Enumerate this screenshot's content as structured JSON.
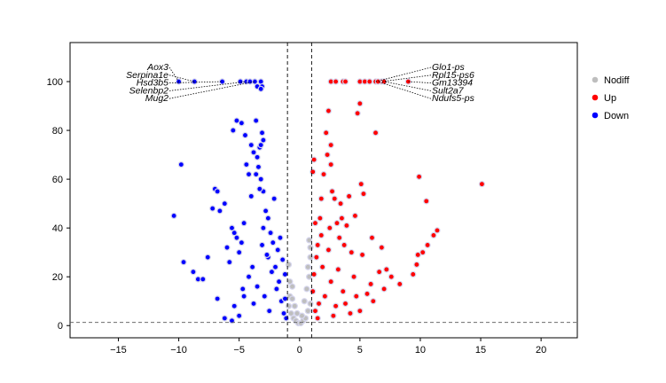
{
  "chart_data": {
    "type": "scatter",
    "title": "",
    "xlabel": "",
    "ylabel": "",
    "xlim": [
      -19,
      23
    ],
    "ylim": [
      -5,
      116
    ],
    "xticks": [
      -15,
      -10,
      -5,
      0,
      5,
      10,
      15,
      20
    ],
    "yticks": [
      0,
      20,
      40,
      60,
      80,
      100
    ],
    "thresholds": {
      "x": [
        -1,
        1
      ],
      "y": 1.3
    },
    "legend": {
      "position": "right",
      "entries": [
        {
          "name": "Nodiff",
          "color": "#bebebe"
        },
        {
          "name": "Up",
          "color": "#ff0000"
        },
        {
          "name": "Down",
          "color": "#0000ff"
        }
      ]
    },
    "labeled_genes": {
      "left": [
        {
          "name": "Aox3",
          "x": -10.0,
          "y": 100
        },
        {
          "name": "Serpina1e",
          "x": -8.7,
          "y": 100
        },
        {
          "name": "Hsd3b5",
          "x": -6.4,
          "y": 100
        },
        {
          "name": "Selenbp2",
          "x": -4.4,
          "y": 100
        },
        {
          "name": "Mug2",
          "x": -3.7,
          "y": 100
        }
      ],
      "right": [
        {
          "name": "Glo1-ps",
          "x": 6.3,
          "y": 100
        },
        {
          "name": "Rpl15-ps6",
          "x": 6.8,
          "y": 100
        },
        {
          "name": "Gm13394",
          "x": 9.0,
          "y": 100
        },
        {
          "name": "Sult2a7",
          "x": 7.0,
          "y": 100
        },
        {
          "name": "Ndufs5-ps",
          "x": 6.5,
          "y": 100
        }
      ]
    },
    "series": [
      {
        "name": "Down",
        "color": "#0000ff",
        "points": [
          [
            -10.0,
            100
          ],
          [
            -8.7,
            100
          ],
          [
            -6.4,
            100
          ],
          [
            -4.4,
            100
          ],
          [
            -3.7,
            100
          ],
          [
            -4.9,
            100
          ],
          [
            -4.1,
            100
          ],
          [
            -3.2,
            100
          ],
          [
            -3.1,
            98
          ],
          [
            -3.5,
            98
          ],
          [
            -3.2,
            97
          ],
          [
            -9.8,
            66
          ],
          [
            -10.4,
            45
          ],
          [
            -9.6,
            26
          ],
          [
            -8.8,
            22
          ],
          [
            -8.4,
            19
          ],
          [
            -8.0,
            19
          ],
          [
            -7.6,
            28
          ],
          [
            -7.2,
            48
          ],
          [
            -7.0,
            56
          ],
          [
            -6.8,
            55
          ],
          [
            -6.6,
            47
          ],
          [
            -6.2,
            50
          ],
          [
            -6.0,
            32
          ],
          [
            -5.8,
            26
          ],
          [
            -5.6,
            40
          ],
          [
            -5.4,
            38
          ],
          [
            -5.2,
            36
          ],
          [
            -5.5,
            80
          ],
          [
            -5.2,
            84
          ],
          [
            -4.8,
            83
          ],
          [
            -4.5,
            78
          ],
          [
            -4.0,
            74
          ],
          [
            -3.8,
            71
          ],
          [
            -3.5,
            69
          ],
          [
            -3.3,
            73
          ],
          [
            -3.2,
            74
          ],
          [
            -3.6,
            84
          ],
          [
            -3.1,
            79
          ],
          [
            -3.0,
            76
          ],
          [
            -3.4,
            65
          ],
          [
            -3.2,
            60
          ],
          [
            -3.0,
            55
          ],
          [
            -2.8,
            47
          ],
          [
            -2.6,
            44
          ],
          [
            -3.6,
            62
          ],
          [
            -3.3,
            56
          ],
          [
            -4.4,
            66
          ],
          [
            -4.2,
            62
          ],
          [
            -4.0,
            53
          ],
          [
            -4.6,
            42
          ],
          [
            -4.8,
            34
          ],
          [
            -5.0,
            30
          ],
          [
            -6.8,
            11
          ],
          [
            -5.4,
            8
          ],
          [
            -5.0,
            4
          ],
          [
            -5.6,
            2
          ],
          [
            -6.2,
            3
          ],
          [
            -4.6,
            12
          ],
          [
            -3.0,
            40
          ],
          [
            -2.4,
            38
          ],
          [
            -2.2,
            34
          ],
          [
            -1.8,
            31
          ],
          [
            -1.6,
            36
          ],
          [
            -1.4,
            27
          ],
          [
            -1.2,
            21
          ],
          [
            -2.0,
            24
          ],
          [
            -2.6,
            28
          ],
          [
            -1.9,
            15
          ],
          [
            -1.5,
            10
          ],
          [
            -1.3,
            5
          ],
          [
            -1.1,
            3
          ],
          [
            -2.5,
            6
          ],
          [
            -3.5,
            16
          ],
          [
            -3.9,
            24
          ],
          [
            -4.2,
            20
          ],
          [
            -2.1,
            52
          ],
          [
            -2.7,
            29
          ],
          [
            -4.7,
            15
          ],
          [
            -3.8,
            9
          ],
          [
            -2.9,
            12
          ],
          [
            -1.7,
            18
          ],
          [
            -1.2,
            11
          ],
          [
            -2.3,
            22
          ],
          [
            -3.1,
            33
          ]
        ]
      },
      {
        "name": "Up",
        "color": "#ff0000",
        "points": [
          [
            6.3,
            100
          ],
          [
            6.8,
            100
          ],
          [
            9.0,
            100
          ],
          [
            7.0,
            100
          ],
          [
            6.5,
            100
          ],
          [
            2.6,
            100
          ],
          [
            3.0,
            100
          ],
          [
            3.6,
            100
          ],
          [
            3.8,
            100
          ],
          [
            5.0,
            100
          ],
          [
            5.4,
            100
          ],
          [
            5.8,
            100
          ],
          [
            15.1,
            58
          ],
          [
            11.4,
            39
          ],
          [
            11.1,
            37
          ],
          [
            10.5,
            51
          ],
          [
            10.6,
            33
          ],
          [
            10.2,
            30
          ],
          [
            9.7,
            25
          ],
          [
            9.9,
            61
          ],
          [
            9.8,
            29
          ],
          [
            9.4,
            21
          ],
          [
            8.3,
            17
          ],
          [
            7.6,
            20
          ],
          [
            7.2,
            23
          ],
          [
            7.0,
            15
          ],
          [
            6.8,
            32
          ],
          [
            6.6,
            22
          ],
          [
            6.3,
            79
          ],
          [
            6.0,
            36
          ],
          [
            5.9,
            17
          ],
          [
            5.6,
            13
          ],
          [
            5.2,
            29
          ],
          [
            5.3,
            54
          ],
          [
            5.1,
            58
          ],
          [
            5.0,
            91
          ],
          [
            4.8,
            87
          ],
          [
            4.6,
            45
          ],
          [
            4.3,
            30
          ],
          [
            4.1,
            53
          ],
          [
            3.9,
            41
          ],
          [
            3.7,
            33
          ],
          [
            3.5,
            44
          ],
          [
            3.3,
            36
          ],
          [
            3.1,
            42
          ],
          [
            2.9,
            52
          ],
          [
            2.7,
            55
          ],
          [
            2.6,
            74
          ],
          [
            2.6,
            66
          ],
          [
            2.4,
            88
          ],
          [
            2.3,
            70
          ],
          [
            2.2,
            79
          ],
          [
            2.0,
            62
          ],
          [
            1.8,
            52
          ],
          [
            1.7,
            44
          ],
          [
            1.5,
            33
          ],
          [
            1.2,
            68
          ],
          [
            1.1,
            63
          ],
          [
            1.4,
            28
          ],
          [
            1.2,
            21
          ],
          [
            1.1,
            14
          ],
          [
            1.3,
            6
          ],
          [
            1.6,
            9
          ],
          [
            2.1,
            12
          ],
          [
            2.6,
            18
          ],
          [
            3.0,
            8
          ],
          [
            3.6,
            14
          ],
          [
            4.2,
            5
          ],
          [
            5.0,
            6
          ],
          [
            1.9,
            24
          ],
          [
            2.4,
            31
          ],
          [
            1.5,
            3
          ],
          [
            3.2,
            23
          ],
          [
            4.5,
            20
          ],
          [
            1.8,
            37
          ],
          [
            2.8,
            4
          ],
          [
            3.4,
            50
          ],
          [
            1.3,
            42
          ],
          [
            2.5,
            40
          ],
          [
            3.8,
            9
          ],
          [
            6.1,
            10
          ],
          [
            4.7,
            12
          ]
        ]
      },
      {
        "name": "Nodiff",
        "color": "#bebebe",
        "points": [
          [
            -0.9,
            8
          ],
          [
            -0.7,
            5
          ],
          [
            -0.5,
            3
          ],
          [
            -0.3,
            2
          ],
          [
            -0.1,
            1
          ],
          [
            0.1,
            1
          ],
          [
            0.3,
            2
          ],
          [
            0.5,
            3
          ],
          [
            0.7,
            6
          ],
          [
            0.9,
            9
          ],
          [
            -0.8,
            12
          ],
          [
            -0.6,
            16
          ],
          [
            0.6,
            15
          ],
          [
            0.8,
            20
          ],
          [
            0.9,
            28
          ],
          [
            -0.9,
            25
          ],
          [
            0.4,
            10
          ],
          [
            -0.4,
            8
          ],
          [
            0.2,
            4
          ],
          [
            -0.2,
            5
          ],
          [
            0.8,
            35
          ],
          [
            0.9,
            32
          ],
          [
            -0.8,
            18
          ],
          [
            0.7,
            24
          ],
          [
            -0.6,
            11
          ]
        ]
      }
    ]
  }
}
